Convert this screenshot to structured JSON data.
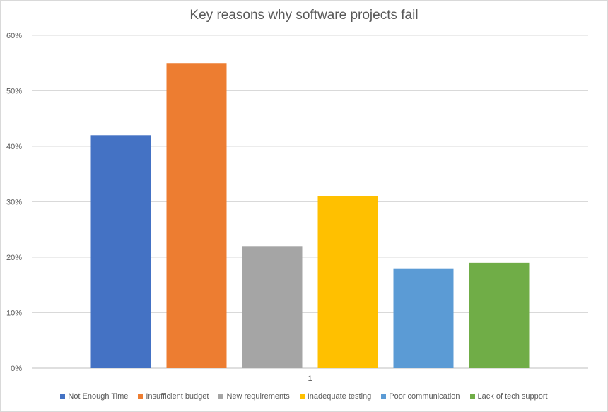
{
  "chart_data": {
    "type": "bar",
    "title": "Key reasons why software projects fail",
    "xlabel": "",
    "ylabel": "",
    "categories": [
      "1"
    ],
    "ylim": [
      0,
      60
    ],
    "yticks": [
      "0%",
      "10%",
      "20%",
      "30%",
      "40%",
      "50%",
      "60%"
    ],
    "grid": true,
    "legend_position": "bottom",
    "series": [
      {
        "name": "Not Enough Time",
        "values": [
          42
        ],
        "color": "#4472c4"
      },
      {
        "name": "Insufficient budget",
        "values": [
          55
        ],
        "color": "#ed7d31"
      },
      {
        "name": "New requirements",
        "values": [
          22
        ],
        "color": "#a5a5a5"
      },
      {
        "name": "Inadequate testing",
        "values": [
          31
        ],
        "color": "#ffc000"
      },
      {
        "name": "Poor communication",
        "values": [
          18
        ],
        "color": "#5b9bd5"
      },
      {
        "name": "Lack of tech support",
        "values": [
          19
        ],
        "color": "#70ad47"
      }
    ]
  }
}
